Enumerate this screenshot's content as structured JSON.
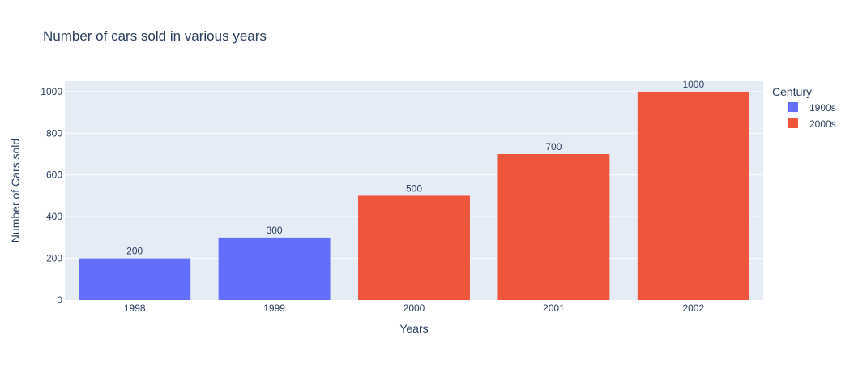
{
  "chart_data": {
    "type": "bar",
    "title": "Number of cars sold in various years",
    "xlabel": "Years",
    "ylabel": "Number of Cars sold",
    "categories": [
      "1998",
      "1999",
      "2000",
      "2001",
      "2002"
    ],
    "values": [
      200,
      300,
      500,
      700,
      1000
    ],
    "data_labels": [
      "200",
      "300",
      "500",
      "700",
      "1000"
    ],
    "groups": [
      "1900s",
      "1900s",
      "2000s",
      "2000s",
      "2000s"
    ],
    "ylim": [
      0,
      1050
    ],
    "yticks": [
      0,
      200,
      400,
      600,
      800,
      1000
    ],
    "ytick_labels": [
      "0",
      "200",
      "400",
      "600",
      "800",
      "1000"
    ],
    "grid": true,
    "legend": {
      "title": "Century",
      "position": "top-right",
      "items": [
        {
          "name": "1900s",
          "color": "#636efa"
        },
        {
          "name": "2000s",
          "color": "#ef553b"
        }
      ]
    },
    "colors": {
      "plot_background": "#e5ecf6",
      "grid": "#ffffff",
      "text": "#2a3f5f",
      "1900s": "#636efa",
      "2000s": "#ef553b"
    }
  }
}
